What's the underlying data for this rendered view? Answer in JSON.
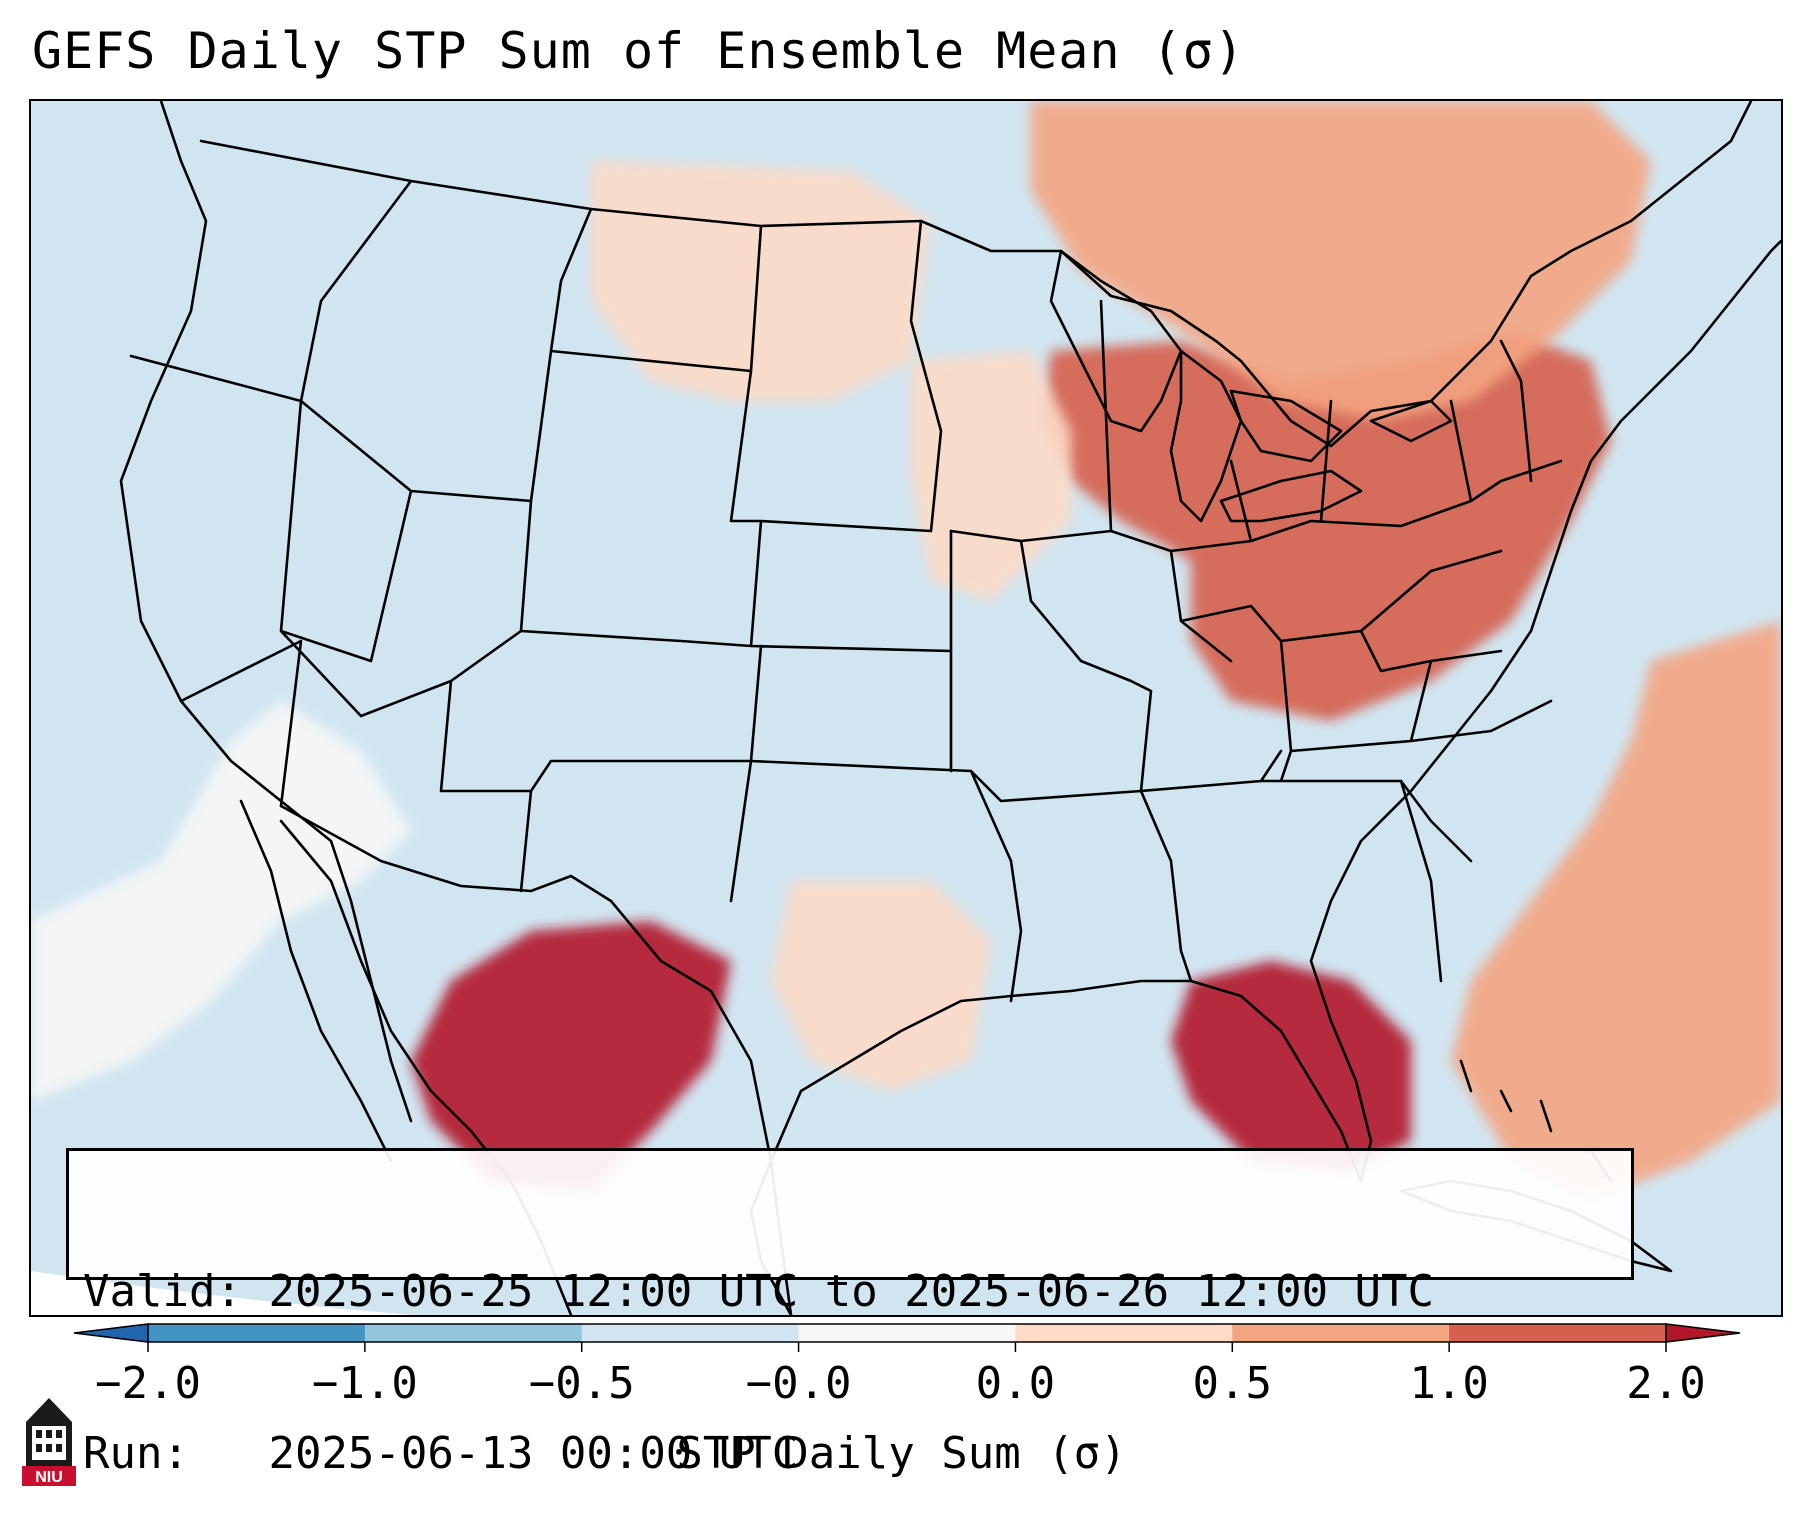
{
  "title": "GEFS Daily STP Sum of Ensemble Mean (σ)",
  "info": {
    "valid_label": "Valid:",
    "valid_value": "2025-06-25 12:00 UTC to 2025-06-26 12:00 UTC",
    "run_label": "Run:",
    "run_value": "2025-06-13 00:00 UTC"
  },
  "colorbar": {
    "label": "STP Daily Sum (σ)",
    "tick_labels": [
      "−2.0",
      "−1.0",
      "−0.5",
      "−0.0",
      "0.0",
      "0.5",
      "1.0",
      "2.0"
    ],
    "bins": [
      {
        "range": "< -2.0",
        "color": "#2166ac"
      },
      {
        "range": "-2.0 to -1.0",
        "color": "#4393c3"
      },
      {
        "range": "-1.0 to -0.5",
        "color": "#92c5de"
      },
      {
        "range": "-0.5 to -0.0",
        "color": "#d1e5f0"
      },
      {
        "range": "-0.0 to 0.0",
        "color": "#f7f7f7"
      },
      {
        "range": "0.0 to 0.5",
        "color": "#fddbc7"
      },
      {
        "range": "0.5 to 1.0",
        "color": "#f4a582"
      },
      {
        "range": "1.0 to 2.0",
        "color": "#d6604d"
      },
      {
        "range": "> 2.0",
        "color": "#b2182b"
      }
    ]
  },
  "logo": {
    "text": "NIU",
    "color": "#c8102e"
  },
  "map": {
    "background_color": "#d1e5f0",
    "outside_domain_color": "#ffffff",
    "anomaly_regions": [
      {
        "name": "great-lakes-ohio-valley-northeast",
        "category": "1.0 to 2.0"
      },
      {
        "name": "canada-ontario-quebec",
        "category": "0.5 to 1.0"
      },
      {
        "name": "gulf-of-mexico-florida",
        "category": "> 2.0"
      },
      {
        "name": "western-atlantic",
        "category": "0.5 to 1.0"
      },
      {
        "name": "northern-mexico",
        "category": "> 2.0"
      },
      {
        "name": "northern-plains-montana",
        "category": "0.0 to 0.5"
      },
      {
        "name": "upper-midwest",
        "category": "0.0 to 0.5"
      },
      {
        "name": "texas",
        "category": "0.0 to 0.5"
      },
      {
        "name": "pacific-offshore",
        "category": "-0.0 to 0.0"
      }
    ]
  }
}
